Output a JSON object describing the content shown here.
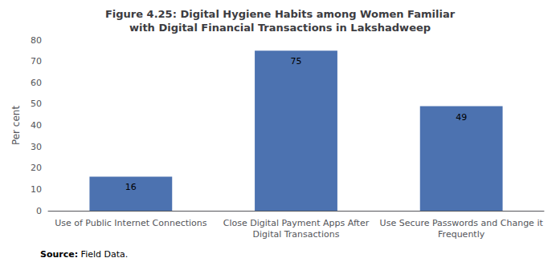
{
  "chart_data": {
    "type": "bar",
    "title": "Figure 4.25: Digital Hygiene Habits among Women Familiar\nwith Digital Financial Transactions in Lakshadweep",
    "categories": [
      "Use of Public Internet Connections",
      "Close Digital Payment Apps After\nDigital Transactions",
      "Use Secure Passwords and Change it\nFrequently"
    ],
    "values": [
      16,
      75,
      49
    ],
    "color": "#4C72B0",
    "ylabel": "Per cent",
    "ylim": [
      0,
      80
    ],
    "yticks": [
      0,
      10,
      20,
      30,
      40,
      50,
      60,
      70,
      80
    ],
    "grid": false,
    "data_labels": true,
    "annotations": [
      "Source:",
      "Field Data."
    ]
  }
}
